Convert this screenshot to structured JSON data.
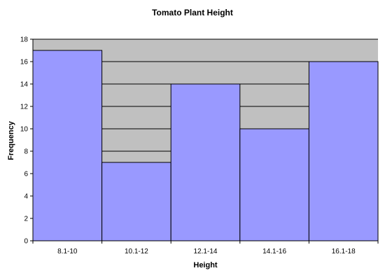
{
  "chart_data": {
    "type": "bar",
    "title": "Tomato Plant Height",
    "xlabel": "Height",
    "ylabel": "Frequency",
    "categories": [
      "8.1-10",
      "10.1-12",
      "12.1-14",
      "14.1-16",
      "16.1-18"
    ],
    "values": [
      17,
      7,
      14,
      10,
      16
    ],
    "ylim": [
      0,
      18
    ],
    "y_ticks": [
      "0",
      "2",
      "4",
      "6",
      "8",
      "10",
      "12",
      "14",
      "16",
      "18"
    ],
    "grid": true,
    "legend": "none",
    "colors": {
      "bar_fill": "#9999ff",
      "bar_stroke": "#000000",
      "plot_background": "#c0c0c0",
      "gridline": "#000000"
    }
  }
}
